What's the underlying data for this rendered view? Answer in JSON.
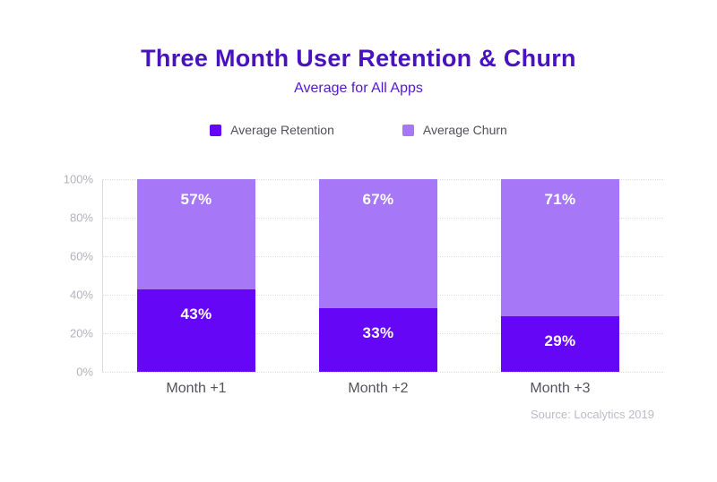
{
  "chart_data": {
    "type": "bar",
    "stacked": true,
    "title": "Three Month User Retention & Churn",
    "subtitle": "Average for All Apps",
    "categories": [
      "Month +1",
      "Month +2",
      "Month +3"
    ],
    "series": [
      {
        "name": "Average Retention",
        "color": "#6606f7",
        "values": [
          43,
          33,
          29
        ],
        "labels": [
          "43%",
          "33%",
          "29%"
        ]
      },
      {
        "name": "Average Churn",
        "color": "#a678f7",
        "values": [
          57,
          67,
          71
        ],
        "labels": [
          "57%",
          "67%",
          "71%"
        ]
      }
    ],
    "xlabel": "",
    "ylabel": "",
    "ylim": [
      0,
      100
    ],
    "y_ticks": [
      "0%",
      "20%",
      "40%",
      "60%",
      "80%",
      "100%"
    ],
    "grid": "horizontal-dotted",
    "legend_position": "top",
    "source": "Source: Localytics 2019"
  },
  "colors": {
    "title": "#4812be",
    "subtitle": "#5517cf",
    "retention_bar": "#6606f7",
    "churn_bar": "#a678f7",
    "bar_value_text": "#ffffff",
    "axis_text": "#b3b1bc",
    "background": "#ffffff"
  }
}
